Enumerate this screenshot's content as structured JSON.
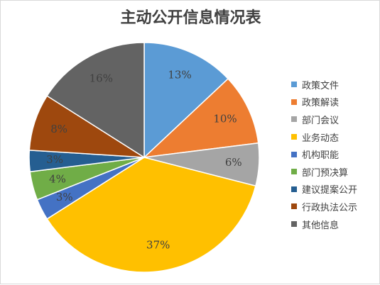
{
  "chart_data": {
    "type": "pie",
    "title": "主动公开信息情况表",
    "slices": [
      {
        "name": "政策文件",
        "value": 13,
        "label": "13%",
        "color": "#5B9BD5"
      },
      {
        "name": "政策解读",
        "value": 10,
        "label": "10%",
        "color": "#ED7D31"
      },
      {
        "name": "部门会议",
        "value": 6,
        "label": "6%",
        "color": "#A5A5A5"
      },
      {
        "name": "业务动态",
        "value": 37,
        "label": "37%",
        "color": "#FFC000"
      },
      {
        "name": "机构职能",
        "value": 3,
        "label": "3%",
        "color": "#4472C4"
      },
      {
        "name": "部门预决算",
        "value": 4,
        "label": "4%",
        "color": "#70AD47"
      },
      {
        "name": "建议提案公开",
        "value": 3,
        "label": "3%",
        "color": "#255E91"
      },
      {
        "name": "行政执法公示",
        "value": 8,
        "label": "8%",
        "color": "#9E480E"
      },
      {
        "name": "其他信息",
        "value": 16,
        "label": "16%",
        "color": "#636363"
      }
    ],
    "legend_position": "right"
  }
}
